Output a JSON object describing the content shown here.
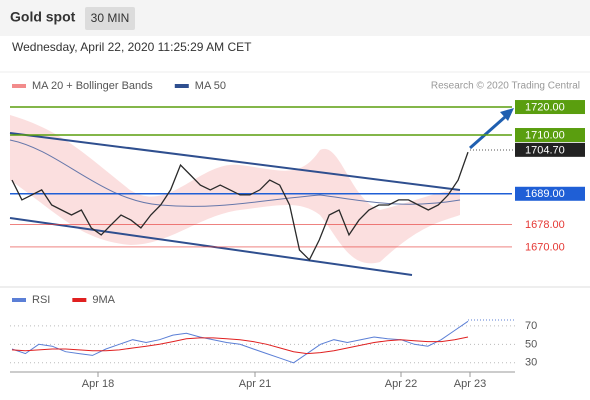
{
  "header": {
    "title": "Gold spot",
    "timeframe": "30 MIN",
    "date": "Wednesday, April 22, 2020 11:25:29 AM CET"
  },
  "chart_data": [
    {
      "type": "line",
      "source": "Research © 2020 Trading Central",
      "legend": [
        {
          "name": "MA 20 + Bollinger Bands",
          "color": "#f28b8b"
        },
        {
          "name": "MA 50",
          "color": "#2f4f8f"
        }
      ],
      "color": "#2a2a2a",
      "values": [
        1693.9,
        1686.8,
        1688.6,
        1690.4,
        1685,
        1683.2,
        1681.4,
        1683.2,
        1676.8,
        1674.3,
        1677.9,
        1681.4,
        1679.6,
        1676.8,
        1681.4,
        1685,
        1690.4,
        1699.3,
        1695.7,
        1692.1,
        1690.4,
        1692.1,
        1690.4,
        1688.6,
        1688.6,
        1690.4,
        1693.9,
        1692.1,
        1685,
        1668.9,
        1665.4,
        1672.5,
        1681.4,
        1683.2,
        1674.3,
        1679.6,
        1683.2,
        1685,
        1685,
        1686.8,
        1686.8,
        1685,
        1683.2,
        1685,
        1688.6,
        1693.9,
        1703.9
      ],
      "ylim": [
        1656.4,
        1724.3
      ],
      "levels": [
        {
          "value": 1720,
          "label": "1720.00",
          "color": "#5a9e0f",
          "style": "box",
          "line": true
        },
        {
          "value": 1710,
          "label": "1710.00",
          "color": "#5a9e0f",
          "style": "box",
          "line": true
        },
        {
          "value": 1704.7,
          "label": "1704.70",
          "color": "#222222",
          "style": "box",
          "line": false
        },
        {
          "value": 1689,
          "label": "1689.00",
          "color": "#1f5fd6",
          "style": "box",
          "line": true
        },
        {
          "value": 1678,
          "label": "1678.00",
          "color": "#e53935",
          "style": "text",
          "line": true
        },
        {
          "value": 1670,
          "label": "1670.00",
          "color": "#e53935",
          "style": "text",
          "line": true
        }
      ],
      "xticks": [
        "Apr 18",
        "Apr 21",
        "Apr 22",
        "Apr 23"
      ]
    },
    {
      "type": "line",
      "series": [
        {
          "name": "RSI",
          "color": "#5b7fd6",
          "values": [
            45,
            40,
            50,
            48,
            42,
            40,
            38,
            45,
            50,
            55,
            52,
            55,
            60,
            62,
            58,
            55,
            52,
            50,
            45,
            40,
            35,
            30,
            40,
            50,
            55,
            52,
            55,
            58,
            56,
            55,
            50,
            48,
            55,
            65,
            75
          ]
        },
        {
          "name": "9MA",
          "color": "#e02020",
          "values": [
            44,
            43,
            44,
            45,
            45,
            44,
            43,
            43,
            44,
            46,
            48,
            50,
            53,
            56,
            57,
            57,
            56,
            55,
            53,
            50,
            46,
            42,
            40,
            41,
            43,
            46,
            49,
            52,
            54,
            55,
            54,
            53,
            53,
            55,
            58
          ]
        }
      ],
      "ylim": [
        20,
        84
      ],
      "yticks": [
        30,
        50,
        70
      ]
    }
  ]
}
